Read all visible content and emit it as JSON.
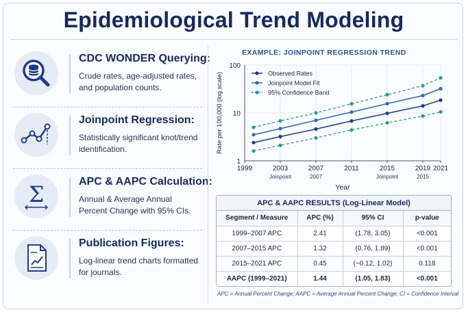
{
  "header": {
    "title": "Epidemiological Trend Modeling"
  },
  "features": [
    {
      "icon": "database-search-icon",
      "title": "CDC WONDER Querying:",
      "desc": "Crude rates, age-adjusted rates, and population counts."
    },
    {
      "icon": "line-chart-icon",
      "title": "Joinpoint Regression:",
      "desc": "Statistically significant knot/trend identification."
    },
    {
      "icon": "sigma-icon",
      "title": "APC & AAPC Calculation:",
      "desc": "Annual & Average Annual Percent Change with 95% CIs."
    },
    {
      "icon": "document-chart-icon",
      "title": "Publication Figures:",
      "desc": "Log-linear trend charts formatted for journals."
    }
  ],
  "chart_data": {
    "type": "line",
    "title": "EXAMPLE: JOINPOINT REGRESSION TREND",
    "xlabel": "Year",
    "ylabel": "Rate per 100,000 (log scale)",
    "xlim": [
      1999,
      2021
    ],
    "ylim": [
      1,
      100
    ],
    "yscale": "log",
    "xticks": [
      1999,
      2003,
      2007,
      2011,
      2015,
      2019,
      2021
    ],
    "yticks": [
      1,
      10,
      100
    ],
    "joinpoint_annotations": [
      {
        "x": 2003,
        "text": "Joinpoint"
      },
      {
        "x": 2007,
        "text": "2007"
      },
      {
        "x": 2015,
        "text": "Joinpoint"
      },
      {
        "x": 2019,
        "text": "2015"
      }
    ],
    "legend_position": "top-left",
    "grid": true,
    "series": [
      {
        "name": "Observed Rates",
        "style": "solid-marker",
        "color": "#1f3c88",
        "x": [
          2000,
          2003,
          2007,
          2011,
          2015,
          2019,
          2021
        ],
        "y": [
          2.4,
          3.2,
          4.6,
          6.8,
          9.8,
          14.0,
          18.5
        ]
      },
      {
        "name": "Joinpoint Model Fit",
        "style": "solid-marker",
        "color": "#2f6db3",
        "x": [
          2000,
          2003,
          2007,
          2011,
          2015,
          2019,
          2021
        ],
        "y": [
          3.5,
          4.7,
          7.0,
          10.4,
          15.6,
          23.0,
          32.0
        ]
      },
      {
        "name": "95% Confidence Band",
        "style": "dashed-marker",
        "color": "#2a9a9a",
        "x": [
          2000,
          2003,
          2007,
          2011,
          2015,
          2019,
          2021
        ],
        "y": [
          5.0,
          6.8,
          10.0,
          15.5,
          24.0,
          37.0,
          54.0
        ]
      },
      {
        "name": "",
        "style": "dashed-marker",
        "color": "#2a9a9a",
        "x": [
          2000,
          2003,
          2007,
          2011,
          2015,
          2019,
          2021
        ],
        "y": [
          1.6,
          2.1,
          3.0,
          4.4,
          6.2,
          8.6,
          10.5
        ]
      }
    ]
  },
  "table": {
    "title": "APC & AAPC RESULTS (Log-Linear Model)",
    "headers": [
      "Segment / Measure",
      "APC (%)",
      "95% CI",
      "p-value"
    ],
    "rows": [
      [
        "1999–2007 APC",
        "2.41",
        "(1.78, 3.05)",
        "<0.001"
      ],
      [
        "2007–2015 APC",
        "1.32",
        "(0.76, 1.89)",
        "<0.001"
      ],
      [
        "2015–2021 APC",
        "0.45",
        "(−0.12, 1.02)",
        "0.118"
      ],
      [
        "AAPC (1999–2021)",
        "1.44",
        "(1.05, 1.83)",
        "<0.001"
      ]
    ],
    "footnote": "APC = Annual Percent Change; AAPC = Average Annual Percent Change; CI = Confidence Interval"
  },
  "colors": {
    "navy": "#162a5c",
    "blue": "#2f6db3",
    "teal": "#2a9a9a",
    "icon_bg": "#e6ecf6"
  }
}
